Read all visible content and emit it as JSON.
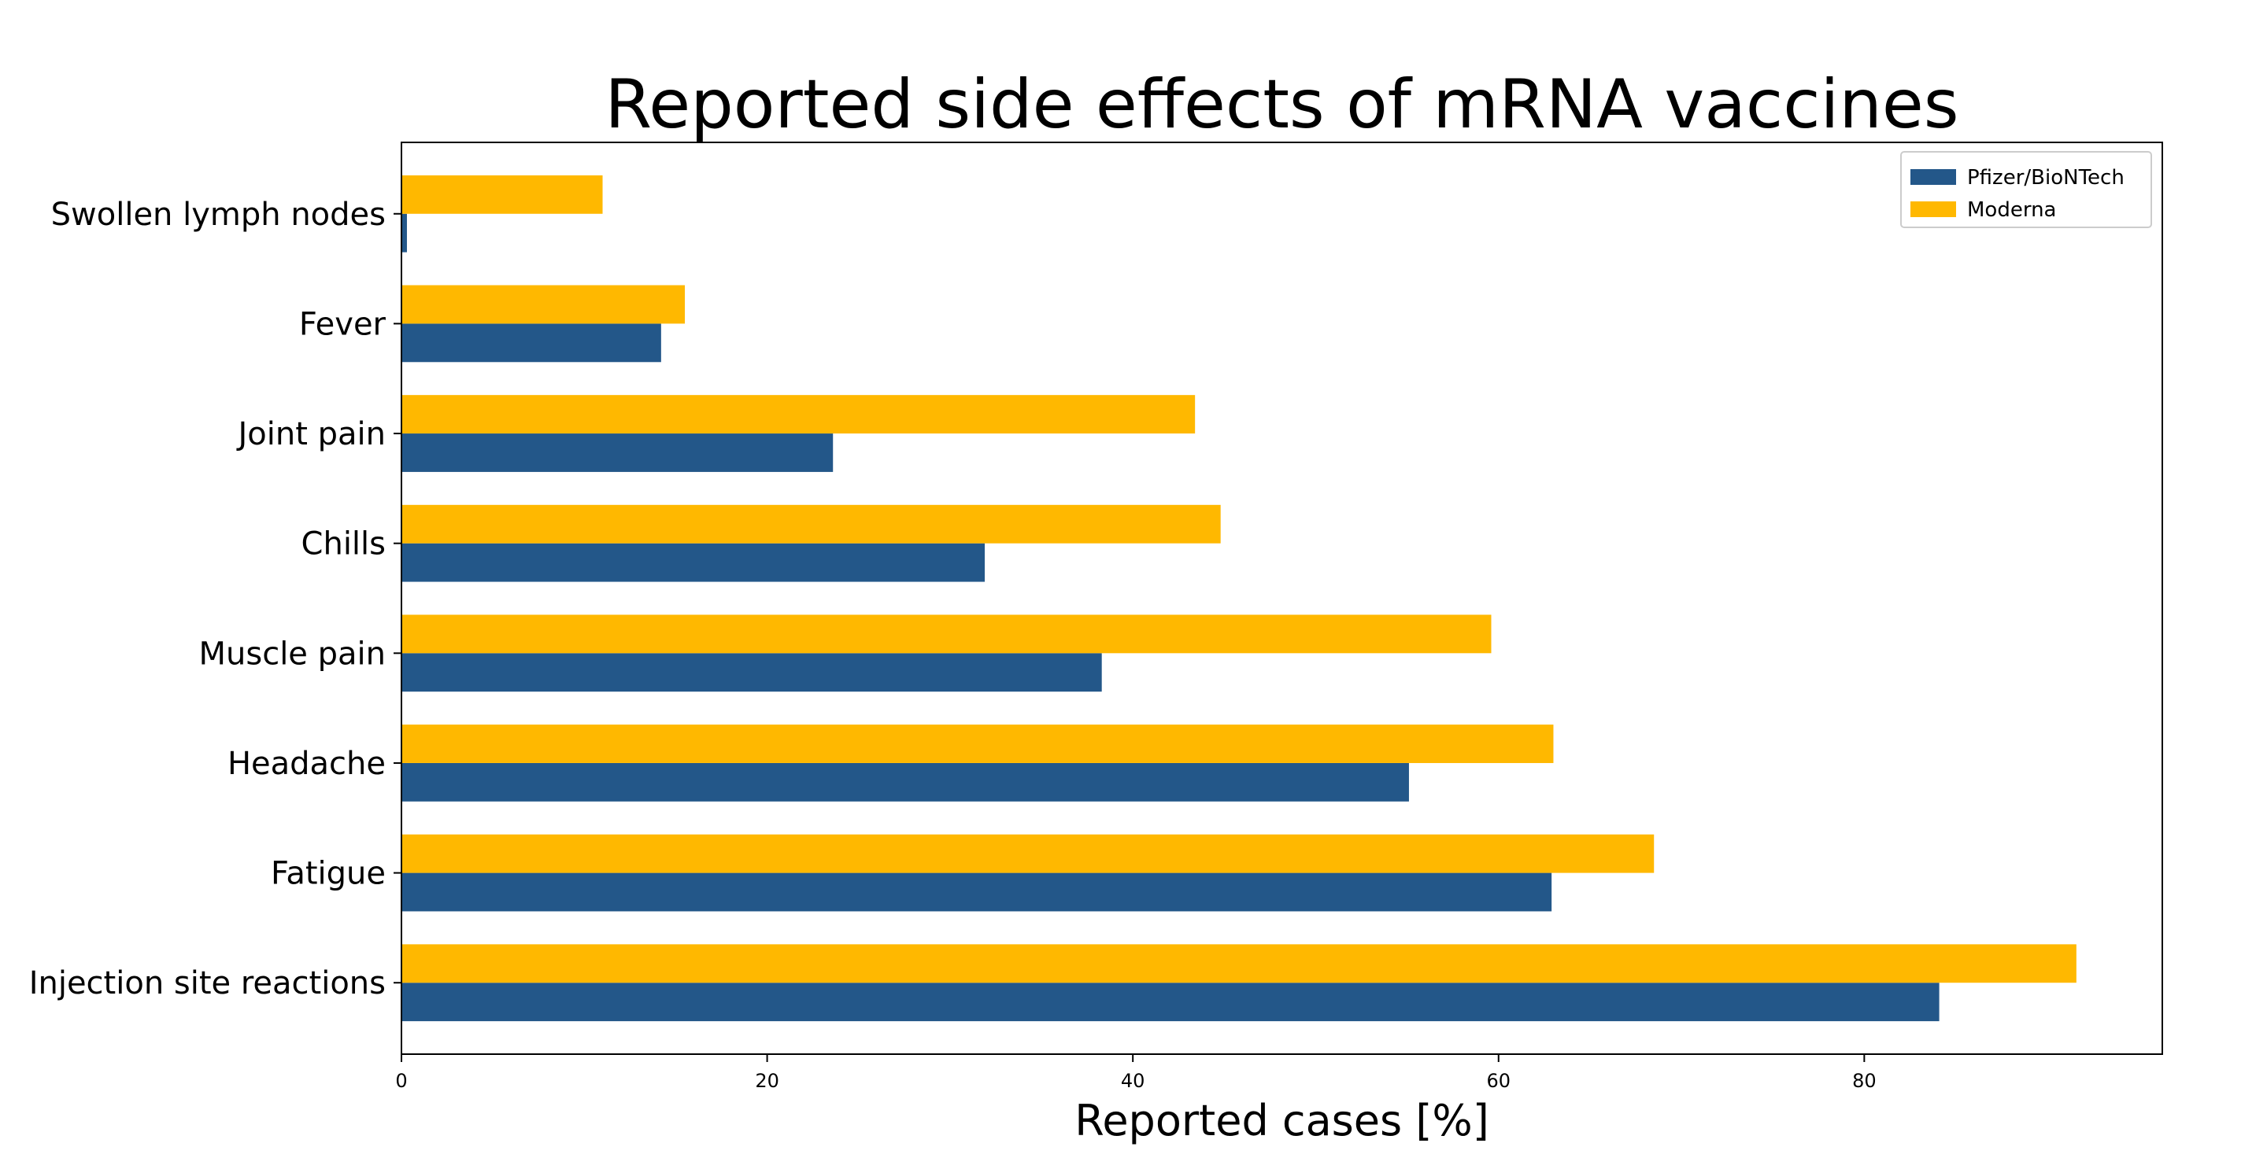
{
  "chart_data": {
    "type": "bar",
    "orientation": "horizontal",
    "title": "Reported side effects of mRNA vaccines",
    "xlabel": "Reported cases [%]",
    "ylabel": "",
    "xlim": [
      0,
      96.3
    ],
    "x_ticks": [
      0,
      20,
      40,
      60,
      80
    ],
    "grid": false,
    "legend_position": "top-right",
    "categories": [
      "Injection site reactions",
      "Fatigue",
      "Headache",
      "Muscle pain",
      "Chills",
      "Joint pain",
      "Fever",
      "Swollen lymph nodes"
    ],
    "series": [
      {
        "name": "Pfizer/BioNTech",
        "color": "#235789",
        "values": [
          84.1,
          62.9,
          55.1,
          38.3,
          31.9,
          23.6,
          14.2,
          0.3
        ]
      },
      {
        "name": "Moderna",
        "color": "#FFB800",
        "values": [
          91.6,
          68.5,
          63.0,
          59.6,
          44.8,
          43.4,
          15.5,
          11.0
        ]
      }
    ]
  }
}
